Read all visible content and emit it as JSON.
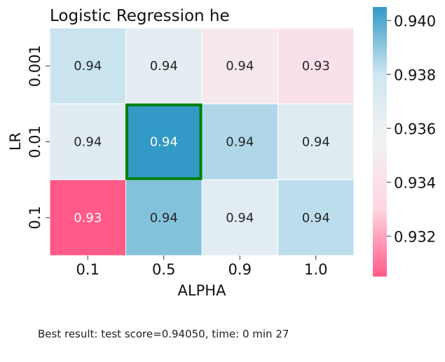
{
  "chart_data": {
    "type": "heatmap",
    "title": "Logistic Regression he",
    "xlabel": "ALPHA",
    "ylabel": "LR",
    "x_categories": [
      "0.1",
      "0.5",
      "0.9",
      "1.0"
    ],
    "y_categories": [
      "0.001",
      "0.01",
      "0.1"
    ],
    "values": [
      [
        0.9381,
        0.9366,
        0.9347,
        0.934
      ],
      [
        0.9368,
        0.9405,
        0.9385,
        0.9369
      ],
      [
        0.9305,
        0.9392,
        0.9367,
        0.9383
      ]
    ],
    "cell_labels": [
      [
        "0.94",
        "0.94",
        "0.94",
        "0.93"
      ],
      [
        "0.94",
        "0.94",
        "0.94",
        "0.94"
      ],
      [
        "0.93",
        "0.94",
        "0.94",
        "0.94"
      ]
    ],
    "highlight": {
      "row": 1,
      "col": 1,
      "color": "#008000"
    },
    "colorbar": {
      "min": 0.9305,
      "max": 0.9405,
      "ticks": [
        "0.932",
        "0.934",
        "0.936",
        "0.938",
        "0.940"
      ],
      "tick_values": [
        0.932,
        0.934,
        0.936,
        0.938,
        0.94
      ],
      "colors": [
        "#ff5a88",
        "#ffd6e1",
        "#f2f2f2",
        "#cfe7f1",
        "#3399c6"
      ]
    },
    "grid": false
  },
  "footer": {
    "text": "Best result: test score=0.94050, time: 0 min 27"
  }
}
